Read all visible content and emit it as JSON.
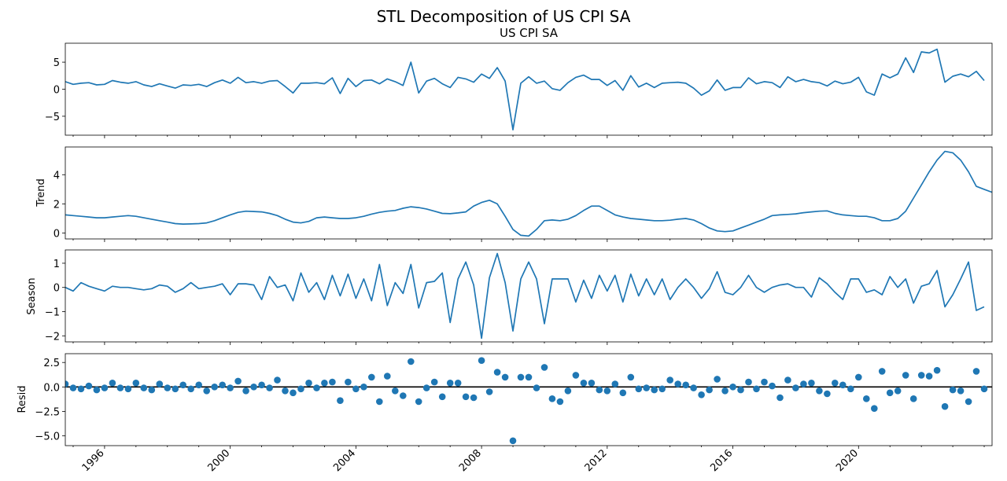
{
  "figure": {
    "suptitle": "STL Decomposition of US CPI SA",
    "line_color": "#1f77b4",
    "x_range": [
      1994.75,
      2024.25
    ],
    "x_ticks": [
      1996,
      2000,
      2004,
      2008,
      2012,
      2016,
      2020
    ]
  },
  "chart_data": [
    {
      "type": "line",
      "title": "US CPI SA",
      "ylabel": "",
      "ylim": [
        -8.5,
        8.5
      ],
      "y_ticks": [
        -5,
        0,
        5
      ],
      "series": [
        {
          "x_start": 1994.75,
          "x_step": 0.25,
          "values": [
            1.4,
            0.9,
            1.1,
            1.2,
            0.8,
            0.9,
            1.6,
            1.3,
            1.1,
            1.4,
            0.8,
            0.5,
            1.0,
            0.6,
            0.2,
            0.8,
            0.7,
            0.9,
            0.5,
            1.2,
            1.7,
            1.1,
            2.2,
            1.2,
            1.4,
            1.1,
            1.5,
            1.6,
            0.5,
            -0.7,
            1.1,
            1.1,
            1.2,
            1.0,
            2.1,
            -0.8,
            2.0,
            0.5,
            1.6,
            1.7,
            1.0,
            1.9,
            1.4,
            0.7,
            5.0,
            -0.7,
            1.5,
            2.0,
            1.0,
            0.3,
            2.2,
            1.9,
            1.3,
            2.8,
            2.0,
            4.0,
            1.5,
            -7.5,
            1.1,
            2.3,
            1.1,
            1.5,
            0.1,
            -0.2,
            1.2,
            2.2,
            2.6,
            1.8,
            1.8,
            0.7,
            1.6,
            -0.2,
            2.5,
            0.4,
            1.1,
            0.3,
            1.1,
            1.2,
            1.3,
            1.1,
            0.2,
            -1.1,
            -0.3,
            1.7,
            -0.2,
            0.3,
            0.3,
            2.1,
            1.0,
            1.4,
            1.2,
            0.3,
            2.3,
            1.4,
            1.8,
            1.4,
            1.2,
            0.6,
            1.5,
            1.0,
            1.3,
            2.2,
            -0.5,
            -1.1,
            2.8,
            2.1,
            2.8,
            5.8,
            3.1,
            6.9,
            6.7,
            7.4,
            1.3,
            2.4,
            2.8,
            2.3,
            3.3,
            1.6
          ]
        }
      ]
    },
    {
      "type": "line",
      "title": "",
      "ylabel": "Trend",
      "ylim": [
        -0.4,
        5.9
      ],
      "y_ticks": [
        0,
        2,
        4
      ],
      "series": [
        {
          "x_start": 1994.75,
          "x_step": 0.25,
          "values": [
            1.25,
            1.2,
            1.15,
            1.1,
            1.05,
            1.05,
            1.1,
            1.15,
            1.2,
            1.15,
            1.05,
            0.95,
            0.85,
            0.75,
            0.65,
            0.62,
            0.63,
            0.65,
            0.7,
            0.85,
            1.05,
            1.25,
            1.42,
            1.5,
            1.48,
            1.45,
            1.35,
            1.2,
            0.95,
            0.75,
            0.7,
            0.8,
            1.05,
            1.1,
            1.05,
            1.0,
            1.0,
            1.05,
            1.15,
            1.3,
            1.42,
            1.5,
            1.55,
            1.7,
            1.8,
            1.75,
            1.65,
            1.5,
            1.35,
            1.33,
            1.38,
            1.45,
            1.85,
            2.1,
            2.25,
            2.0,
            1.15,
            0.25,
            -0.15,
            -0.2,
            0.25,
            0.85,
            0.9,
            0.85,
            0.95,
            1.2,
            1.55,
            1.85,
            1.85,
            1.55,
            1.25,
            1.1,
            1.0,
            0.95,
            0.9,
            0.85,
            0.85,
            0.88,
            0.95,
            1.0,
            0.9,
            0.65,
            0.35,
            0.15,
            0.1,
            0.15,
            0.35,
            0.55,
            0.75,
            0.95,
            1.2,
            1.25,
            1.28,
            1.32,
            1.4,
            1.45,
            1.5,
            1.52,
            1.35,
            1.25,
            1.2,
            1.15,
            1.15,
            1.05,
            0.85,
            0.85,
            1.0,
            1.5,
            2.4,
            3.3,
            4.2,
            5.0,
            5.6,
            5.5,
            5.0,
            4.2,
            3.2,
            3.0,
            2.8,
            2.6,
            2.5
          ]
        }
      ]
    },
    {
      "type": "line",
      "title": "",
      "ylabel": "Season",
      "ylim": [
        -2.25,
        1.55
      ],
      "y_ticks": [
        -2,
        -1,
        0,
        1
      ],
      "series": [
        {
          "x_start": 1994.75,
          "x_step": 0.25,
          "values": [
            0.0,
            -0.15,
            0.2,
            0.05,
            -0.05,
            -0.15,
            0.05,
            0.0,
            0.0,
            -0.05,
            -0.1,
            -0.05,
            0.1,
            0.05,
            -0.2,
            -0.05,
            0.2,
            -0.05,
            0.0,
            0.05,
            0.15,
            -0.3,
            0.15,
            0.15,
            0.1,
            -0.5,
            0.45,
            0.0,
            0.1,
            -0.55,
            0.6,
            -0.2,
            0.2,
            -0.5,
            0.5,
            -0.35,
            0.55,
            -0.45,
            0.35,
            -0.55,
            0.95,
            -0.75,
            0.2,
            -0.25,
            0.95,
            -0.85,
            0.2,
            0.25,
            0.6,
            -1.45,
            0.35,
            1.05,
            0.1,
            -2.1,
            0.4,
            1.4,
            0.2,
            -1.8,
            0.35,
            1.05,
            0.35,
            -1.5,
            0.35,
            0.35,
            0.35,
            -0.6,
            0.3,
            -0.45,
            0.5,
            -0.15,
            0.5,
            -0.6,
            0.55,
            -0.35,
            0.35,
            -0.3,
            0.35,
            -0.5,
            0.0,
            0.35,
            0.0,
            -0.45,
            -0.05,
            0.65,
            -0.2,
            -0.3,
            0.0,
            0.5,
            0.0,
            -0.2,
            0.0,
            0.1,
            0.15,
            0.0,
            0.0,
            -0.4,
            0.4,
            0.15,
            -0.2,
            -0.5,
            0.35,
            0.35,
            -0.2,
            -0.1,
            -0.3,
            0.45,
            0.0,
            0.35,
            -0.65,
            0.05,
            0.15,
            0.7,
            -0.8,
            -0.3,
            0.35,
            1.05,
            -0.95,
            -0.8
          ]
        }
      ]
    },
    {
      "type": "scatter",
      "title": "",
      "ylabel": "Resid",
      "ylim": [
        -6.0,
        3.4
      ],
      "y_ticks": [
        -5.0,
        -2.5,
        0.0,
        2.5
      ],
      "y_tick_labels": [
        "−5.0",
        "−2.5",
        "0.0",
        "2.5"
      ],
      "zero_line": true,
      "series": [
        {
          "x_start": 1994.75,
          "x_step": 0.25,
          "values": [
            0.3,
            -0.1,
            -0.2,
            0.1,
            -0.3,
            -0.1,
            0.4,
            -0.1,
            -0.2,
            0.4,
            -0.1,
            -0.3,
            0.3,
            -0.1,
            -0.2,
            0.2,
            -0.2,
            0.2,
            -0.4,
            0.0,
            0.2,
            -0.1,
            0.6,
            -0.4,
            0.0,
            0.2,
            -0.1,
            0.7,
            -0.4,
            -0.6,
            -0.2,
            0.4,
            -0.1,
            0.4,
            0.5,
            -1.4,
            0.5,
            -0.2,
            0.0,
            1.0,
            -1.5,
            1.1,
            -0.4,
            -0.9,
            2.6,
            -1.5,
            -0.1,
            0.5,
            -1.0,
            0.4,
            0.4,
            -1.0,
            -1.1,
            2.7,
            -0.5,
            1.5,
            1.0,
            -5.5,
            1.0,
            1.0,
            -0.1,
            2.0,
            -1.2,
            -1.5,
            -0.4,
            1.2,
            0.4,
            0.4,
            -0.3,
            -0.4,
            0.3,
            -0.6,
            1.0,
            -0.2,
            -0.1,
            -0.3,
            -0.2,
            0.7,
            0.3,
            0.2,
            -0.1,
            -0.8,
            -0.3,
            0.8,
            -0.4,
            0.0,
            -0.3,
            0.5,
            -0.2,
            0.5,
            0.1,
            -1.1,
            0.7,
            -0.1,
            0.3,
            0.4,
            -0.4,
            -0.7,
            0.4,
            0.2,
            -0.2,
            1.0,
            -1.2,
            -2.2,
            1.6,
            -0.6,
            -0.4,
            1.2,
            -1.2,
            1.2,
            1.1,
            1.7,
            -2.0,
            -0.3,
            -0.4,
            -1.5,
            1.6,
            -0.2
          ]
        }
      ]
    }
  ]
}
